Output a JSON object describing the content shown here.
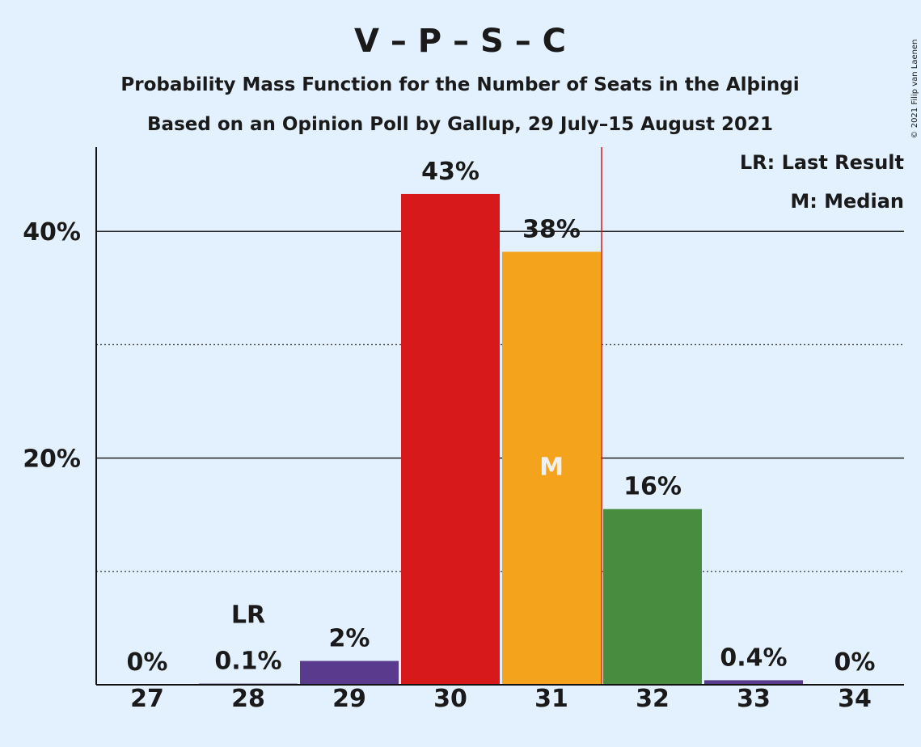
{
  "chart_data": {
    "type": "bar",
    "title": "V – P – S – C",
    "subtitle1": "Probability Mass Function for the Number of Seats in the Alþingi",
    "subtitle2": "Based on an Opinion Poll by Gallup, 29 July–15 August 2021",
    "copyright": "© 2021 Filip van Laenen",
    "categories": [
      "27",
      "28",
      "29",
      "30",
      "31",
      "32",
      "33",
      "34"
    ],
    "values": [
      0,
      0.1,
      2.1,
      43.3,
      38.2,
      15.5,
      0.4,
      0
    ],
    "labels": [
      "0%",
      "0.1%",
      "2%",
      "43%",
      "38%",
      "16%",
      "0.4%",
      "0%"
    ],
    "colors": [
      "#5a3a8c",
      "#5a3a8c",
      "#5a3a8c",
      "#d7191c",
      "#f4a41c",
      "#478c3f",
      "#5a3a8c",
      "#5a3a8c"
    ],
    "ylim": [
      0,
      47
    ],
    "yticks": [
      {
        "value": 20,
        "label": "20%"
      },
      {
        "value": 40,
        "label": "40%"
      }
    ],
    "minor_gridlines": [
      10,
      30
    ],
    "last_result": {
      "category": "28",
      "label": "LR"
    },
    "median": {
      "category": "31",
      "label": "M"
    },
    "majority_line_between": [
      "31",
      "32"
    ],
    "majority_line_color": "#d7191c",
    "legend": [
      "LR: Last Result",
      "M: Median"
    ],
    "legend_position": "top-right",
    "grid": true
  }
}
